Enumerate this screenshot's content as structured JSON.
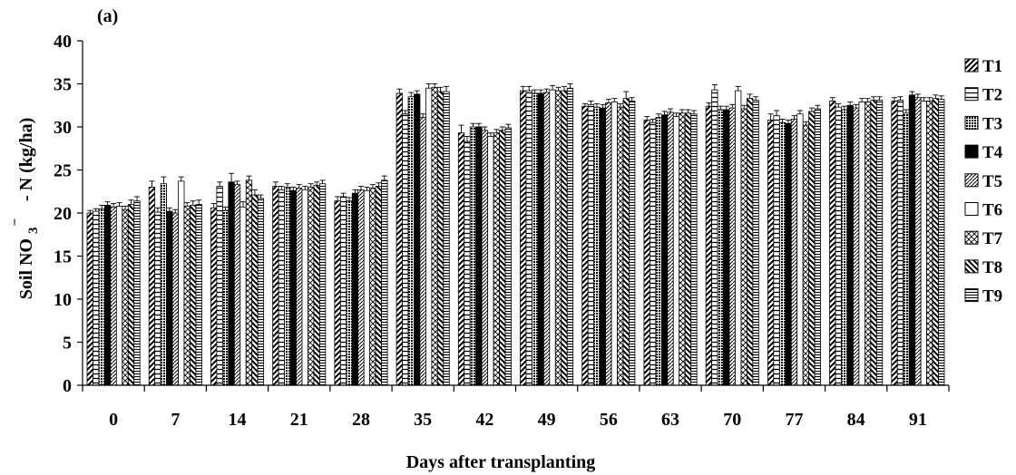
{
  "chart_data": {
    "type": "bar",
    "panel_label": "(a)",
    "xlabel": "Days after transplanting",
    "ylabel": {
      "prefix": "Soil NO",
      "subscript": "3",
      "superscript": "−",
      "suffix": "- N (kg/ha)"
    },
    "ylim": [
      0,
      40
    ],
    "yticks": [
      0,
      5,
      10,
      15,
      20,
      25,
      30,
      35,
      40
    ],
    "categories": [
      "0",
      "7",
      "14",
      "21",
      "28",
      "35",
      "42",
      "49",
      "56",
      "63",
      "70",
      "77",
      "84",
      "91"
    ],
    "grid": false,
    "legend_position": "right",
    "series": [
      {
        "name": "T1",
        "pattern": "diag-up",
        "values": [
          20.0,
          23.0,
          20.6,
          23.1,
          21.4,
          33.9,
          29.3,
          34.2,
          32.4,
          30.8,
          32.4,
          30.8,
          33.0,
          33.0
        ],
        "errors": [
          0.3,
          0.7,
          0.5,
          0.5,
          0.5,
          0.5,
          0.9,
          0.5,
          0.3,
          0.4,
          0.4,
          0.7,
          0.4,
          0.4
        ]
      },
      {
        "name": "T2",
        "pattern": "horizontal",
        "values": [
          20.2,
          20.1,
          23.1,
          22.7,
          21.9,
          31.5,
          28.3,
          34.2,
          32.6,
          30.5,
          34.3,
          31.3,
          32.3,
          33.1
        ],
        "errors": [
          0.3,
          0.5,
          0.5,
          0.4,
          0.4,
          0.4,
          0.6,
          0.5,
          0.4,
          0.4,
          0.6,
          0.6,
          0.4,
          0.4
        ]
      },
      {
        "name": "T3",
        "pattern": "dots",
        "values": [
          20.5,
          23.4,
          20.3,
          23.0,
          21.4,
          33.5,
          30.0,
          33.9,
          32.3,
          31.1,
          32.0,
          30.5,
          32.0,
          31.6
        ],
        "errors": [
          0.4,
          0.8,
          0.4,
          0.4,
          0.4,
          0.5,
          0.4,
          0.4,
          0.4,
          0.4,
          0.4,
          0.4,
          0.4,
          0.4
        ]
      },
      {
        "name": "T4",
        "pattern": "solid",
        "values": [
          20.9,
          20.2,
          23.6,
          22.6,
          22.3,
          33.8,
          30.0,
          33.9,
          32.2,
          31.4,
          32.0,
          30.4,
          32.5,
          33.7
        ],
        "errors": [
          0.4,
          0.4,
          1.0,
          0.4,
          0.4,
          0.4,
          0.4,
          0.4,
          0.4,
          0.4,
          0.4,
          0.4,
          0.4,
          0.4
        ]
      },
      {
        "name": "T5",
        "pattern": "diag-dense",
        "values": [
          20.7,
          20.0,
          23.3,
          22.9,
          22.7,
          31.1,
          29.6,
          34.0,
          32.8,
          31.7,
          32.2,
          30.9,
          32.2,
          33.4
        ],
        "errors": [
          0.4,
          0.4,
          0.4,
          0.4,
          0.4,
          0.4,
          0.4,
          0.4,
          0.4,
          0.4,
          0.4,
          0.4,
          0.4,
          0.4
        ]
      },
      {
        "name": "T6",
        "pattern": "white",
        "values": [
          20.8,
          23.7,
          20.7,
          22.7,
          22.6,
          34.5,
          28.9,
          34.3,
          32.9,
          31.2,
          34.2,
          31.5,
          32.9,
          33.0
        ],
        "errors": [
          0.4,
          0.5,
          0.6,
          0.4,
          0.4,
          0.5,
          0.4,
          0.5,
          0.4,
          0.4,
          0.5,
          0.4,
          0.4,
          0.4
        ]
      },
      {
        "name": "T7",
        "pattern": "cross",
        "values": [
          20.4,
          20.8,
          23.8,
          23.0,
          22.9,
          34.6,
          29.3,
          34.2,
          32.3,
          31.6,
          32.1,
          30.2,
          32.9,
          33.0
        ],
        "errors": [
          0.4,
          0.4,
          0.5,
          0.4,
          0.4,
          0.4,
          0.4,
          0.4,
          0.4,
          0.4,
          0.4,
          0.4,
          0.4,
          0.4
        ]
      },
      {
        "name": "T8",
        "pattern": "diag-down",
        "values": [
          21.0,
          20.9,
          22.1,
          23.2,
          23.1,
          34.1,
          29.6,
          34.2,
          33.3,
          31.6,
          33.3,
          31.8,
          33.1,
          33.3
        ],
        "errors": [
          0.5,
          0.5,
          0.6,
          0.4,
          0.4,
          0.5,
          0.4,
          0.5,
          0.8,
          0.4,
          0.5,
          0.4,
          0.4,
          0.4
        ]
      },
      {
        "name": "T9",
        "pattern": "horizontal-dense",
        "values": [
          21.4,
          21.0,
          21.7,
          23.4,
          23.8,
          34.1,
          29.9,
          34.5,
          33.0,
          31.5,
          33.1,
          32.1,
          33.1,
          33.2
        ],
        "errors": [
          0.5,
          0.5,
          0.4,
          0.4,
          0.5,
          0.6,
          0.4,
          0.5,
          0.4,
          0.4,
          0.4,
          0.4,
          0.4,
          0.4
        ]
      }
    ]
  }
}
